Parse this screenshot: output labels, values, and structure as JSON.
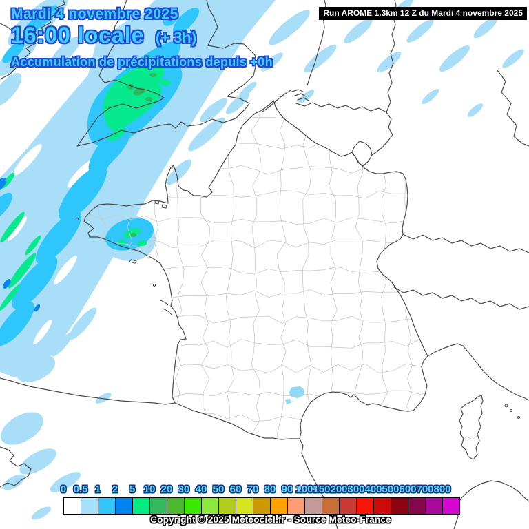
{
  "header": {
    "date_line": "Mardi 4 novembre 2025",
    "time_line": "16:00 locale",
    "offset_label": "(+ 3h)",
    "subtitle": "Accumulation de précipitations depuis +0h",
    "text_color": "#3dcfff",
    "outline_color": "#1f49d7"
  },
  "run_info": {
    "label": "Run AROME 1.3km 12 Z du Mardi 4 novembre 2025",
    "background": "#000000",
    "text_color": "#ffffff"
  },
  "legend": {
    "stops": [
      {
        "label": "0",
        "color": "#ffffff"
      },
      {
        "label": "0.5",
        "color": "#a6e2fc"
      },
      {
        "label": "1",
        "color": "#33c4fa"
      },
      {
        "label": "2",
        "color": "#0085f0"
      },
      {
        "label": "5",
        "color": "#00eb82"
      },
      {
        "label": "10",
        "color": "#33b95e"
      },
      {
        "label": "20",
        "color": "#4cb82e"
      },
      {
        "label": "30",
        "color": "#3ae800"
      },
      {
        "label": "40",
        "color": "#8ce83d"
      },
      {
        "label": "50",
        "color": "#b4cc1e"
      },
      {
        "label": "60",
        "color": "#d6e31f"
      },
      {
        "label": "70",
        "color": "#cc9900"
      },
      {
        "label": "80",
        "color": "#ffa200"
      },
      {
        "label": "90",
        "color": "#ff9d72"
      },
      {
        "label": "100",
        "color": "#c79a9a"
      },
      {
        "label": "150",
        "color": "#c96f35"
      },
      {
        "label": "200",
        "color": "#c93a35"
      },
      {
        "label": "300",
        "color": "#fb1507"
      },
      {
        "label": "400",
        "color": "#ce0a0a"
      },
      {
        "label": "500",
        "color": "#8c0410"
      },
      {
        "label": "600",
        "color": "#84074c"
      },
      {
        "label": "700",
        "color": "#a8089c"
      },
      {
        "label": "800",
        "color": "#d607d0"
      }
    ],
    "tick_color": "#55dcfd"
  },
  "footer": {
    "copyright": "Copyright © 2025 Meteociel.fr - Source Meteo-France"
  },
  "map": {
    "coast_color": "#4a4a4a",
    "department_border_color": "#c9c9c9",
    "precip_light_color": "#a9def8",
    "precip_medium_color": "#2fc7fb",
    "precip_strong_color": "#0a86ee",
    "precip_green_color": "#06e98d",
    "precip_dark_green_color": "#2eb85e"
  }
}
